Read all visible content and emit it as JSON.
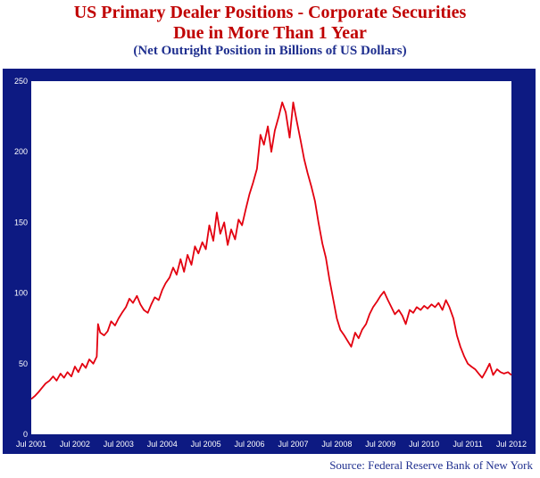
{
  "header": {
    "title_line1": "US Primary Dealer Positions - Corporate Securities",
    "title_line2": "Due in More Than 1 Year",
    "subtitle": "(Net Outright Position in Billions of US Dollars)"
  },
  "footer": {
    "source": "Source: Federal Reserve Bank of New York"
  },
  "colors": {
    "frame": "#0d1a82",
    "line": "#e3000f",
    "title": "#c00000"
  },
  "chart_data": {
    "type": "line",
    "ylim": [
      0,
      250
    ],
    "yticks": [
      0,
      50,
      100,
      150,
      200,
      250
    ],
    "xlim": [
      2001.5,
      2012.5
    ],
    "xticks": [
      {
        "label": "Jul 2001",
        "x": 2001.5
      },
      {
        "label": "Jul 2002",
        "x": 2002.5
      },
      {
        "label": "Jul 2003",
        "x": 2003.5
      },
      {
        "label": "Jul 2004",
        "x": 2004.5
      },
      {
        "label": "Jul 2005",
        "x": 2005.5
      },
      {
        "label": "Jul 2006",
        "x": 2006.5
      },
      {
        "label": "Jul 2007",
        "x": 2007.5
      },
      {
        "label": "Jul 2008",
        "x": 2008.5
      },
      {
        "label": "Jul 2009",
        "x": 2009.5
      },
      {
        "label": "Jul 2010",
        "x": 2010.5
      },
      {
        "label": "Jul 2011",
        "x": 2011.5
      },
      {
        "label": "Jul 2012",
        "x": 2012.5
      }
    ],
    "grid": false,
    "series": [
      {
        "points": [
          [
            2001.5,
            25
          ],
          [
            2001.58,
            27
          ],
          [
            2001.67,
            30
          ],
          [
            2001.75,
            33
          ],
          [
            2001.83,
            36
          ],
          [
            2001.92,
            38
          ],
          [
            2002.0,
            41
          ],
          [
            2002.08,
            38
          ],
          [
            2002.17,
            43
          ],
          [
            2002.25,
            40
          ],
          [
            2002.33,
            44
          ],
          [
            2002.42,
            41
          ],
          [
            2002.5,
            48
          ],
          [
            2002.58,
            44
          ],
          [
            2002.67,
            50
          ],
          [
            2002.75,
            47
          ],
          [
            2002.83,
            53
          ],
          [
            2002.92,
            50
          ],
          [
            2003.0,
            55
          ],
          [
            2003.03,
            78
          ],
          [
            2003.08,
            72
          ],
          [
            2003.17,
            70
          ],
          [
            2003.25,
            73
          ],
          [
            2003.33,
            80
          ],
          [
            2003.42,
            77
          ],
          [
            2003.5,
            82
          ],
          [
            2003.58,
            86
          ],
          [
            2003.67,
            90
          ],
          [
            2003.75,
            96
          ],
          [
            2003.83,
            93
          ],
          [
            2003.92,
            98
          ],
          [
            2004.0,
            92
          ],
          [
            2004.08,
            88
          ],
          [
            2004.17,
            86
          ],
          [
            2004.25,
            92
          ],
          [
            2004.33,
            97
          ],
          [
            2004.42,
            95
          ],
          [
            2004.5,
            102
          ],
          [
            2004.58,
            107
          ],
          [
            2004.67,
            111
          ],
          [
            2004.75,
            118
          ],
          [
            2004.83,
            113
          ],
          [
            2004.92,
            124
          ],
          [
            2005.0,
            115
          ],
          [
            2005.08,
            127
          ],
          [
            2005.17,
            120
          ],
          [
            2005.25,
            133
          ],
          [
            2005.33,
            128
          ],
          [
            2005.42,
            136
          ],
          [
            2005.5,
            131
          ],
          [
            2005.58,
            148
          ],
          [
            2005.67,
            137
          ],
          [
            2005.75,
            157
          ],
          [
            2005.83,
            142
          ],
          [
            2005.92,
            150
          ],
          [
            2006.0,
            134
          ],
          [
            2006.08,
            145
          ],
          [
            2006.17,
            138
          ],
          [
            2006.25,
            152
          ],
          [
            2006.33,
            148
          ],
          [
            2006.42,
            160
          ],
          [
            2006.5,
            170
          ],
          [
            2006.58,
            178
          ],
          [
            2006.67,
            188
          ],
          [
            2006.75,
            212
          ],
          [
            2006.83,
            205
          ],
          [
            2006.92,
            218
          ],
          [
            2007.0,
            200
          ],
          [
            2007.08,
            215
          ],
          [
            2007.17,
            225
          ],
          [
            2007.25,
            235
          ],
          [
            2007.33,
            228
          ],
          [
            2007.42,
            210
          ],
          [
            2007.5,
            235
          ],
          [
            2007.58,
            222
          ],
          [
            2007.67,
            208
          ],
          [
            2007.75,
            195
          ],
          [
            2007.83,
            185
          ],
          [
            2007.92,
            175
          ],
          [
            2008.0,
            165
          ],
          [
            2008.08,
            150
          ],
          [
            2008.17,
            135
          ],
          [
            2008.25,
            125
          ],
          [
            2008.33,
            110
          ],
          [
            2008.42,
            95
          ],
          [
            2008.5,
            82
          ],
          [
            2008.58,
            74
          ],
          [
            2008.67,
            70
          ],
          [
            2008.75,
            66
          ],
          [
            2008.83,
            62
          ],
          [
            2008.92,
            72
          ],
          [
            2009.0,
            68
          ],
          [
            2009.08,
            74
          ],
          [
            2009.17,
            78
          ],
          [
            2009.25,
            85
          ],
          [
            2009.33,
            90
          ],
          [
            2009.42,
            94
          ],
          [
            2009.5,
            98
          ],
          [
            2009.58,
            101
          ],
          [
            2009.67,
            95
          ],
          [
            2009.75,
            90
          ],
          [
            2009.83,
            85
          ],
          [
            2009.92,
            88
          ],
          [
            2010.0,
            84
          ],
          [
            2010.08,
            78
          ],
          [
            2010.17,
            88
          ],
          [
            2010.25,
            86
          ],
          [
            2010.33,
            90
          ],
          [
            2010.42,
            88
          ],
          [
            2010.5,
            91
          ],
          [
            2010.58,
            89
          ],
          [
            2010.67,
            92
          ],
          [
            2010.75,
            90
          ],
          [
            2010.83,
            93
          ],
          [
            2010.92,
            88
          ],
          [
            2011.0,
            95
          ],
          [
            2011.08,
            90
          ],
          [
            2011.17,
            82
          ],
          [
            2011.25,
            70
          ],
          [
            2011.33,
            62
          ],
          [
            2011.42,
            55
          ],
          [
            2011.5,
            50
          ],
          [
            2011.58,
            48
          ],
          [
            2011.67,
            46
          ],
          [
            2011.75,
            43
          ],
          [
            2011.83,
            40
          ],
          [
            2011.92,
            45
          ],
          [
            2012.0,
            50
          ],
          [
            2012.08,
            42
          ],
          [
            2012.17,
            46
          ],
          [
            2012.25,
            44
          ],
          [
            2012.33,
            43
          ],
          [
            2012.42,
            44
          ],
          [
            2012.5,
            42
          ]
        ]
      }
    ]
  }
}
